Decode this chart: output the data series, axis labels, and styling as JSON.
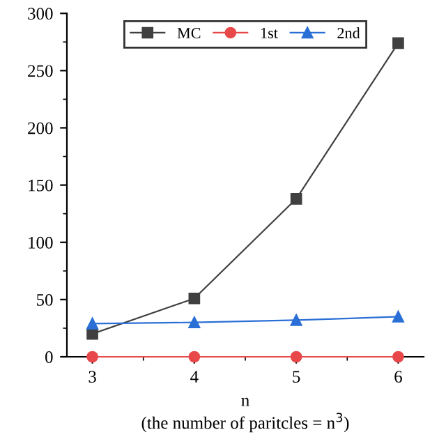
{
  "chart_data": {
    "type": "line",
    "xlabel": "n\n(the number of paritcles = n$^{3}$)",
    "x": [
      3,
      4,
      5,
      6
    ],
    "series": [
      {
        "name": "MC",
        "color": "#404040",
        "values": [
          20,
          51,
          138,
          274
        ],
        "marker": "square"
      },
      {
        "name": "1st",
        "color": "#e8484a",
        "values": [
          0,
          0,
          0,
          0
        ],
        "marker": "circle"
      },
      {
        "name": "2nd",
        "color": "#2a6fd6",
        "values": [
          29,
          30,
          32,
          35
        ],
        "marker": "triangle"
      }
    ],
    "xlim": [
      2.75,
      6.25
    ],
    "xticks": [
      3,
      4,
      5,
      6
    ],
    "ylim": [
      0,
      300
    ],
    "yticks": [
      0,
      50,
      100,
      150,
      200,
      250,
      300
    ],
    "grid": false,
    "legend": "top",
    "line_style": "solid"
  }
}
